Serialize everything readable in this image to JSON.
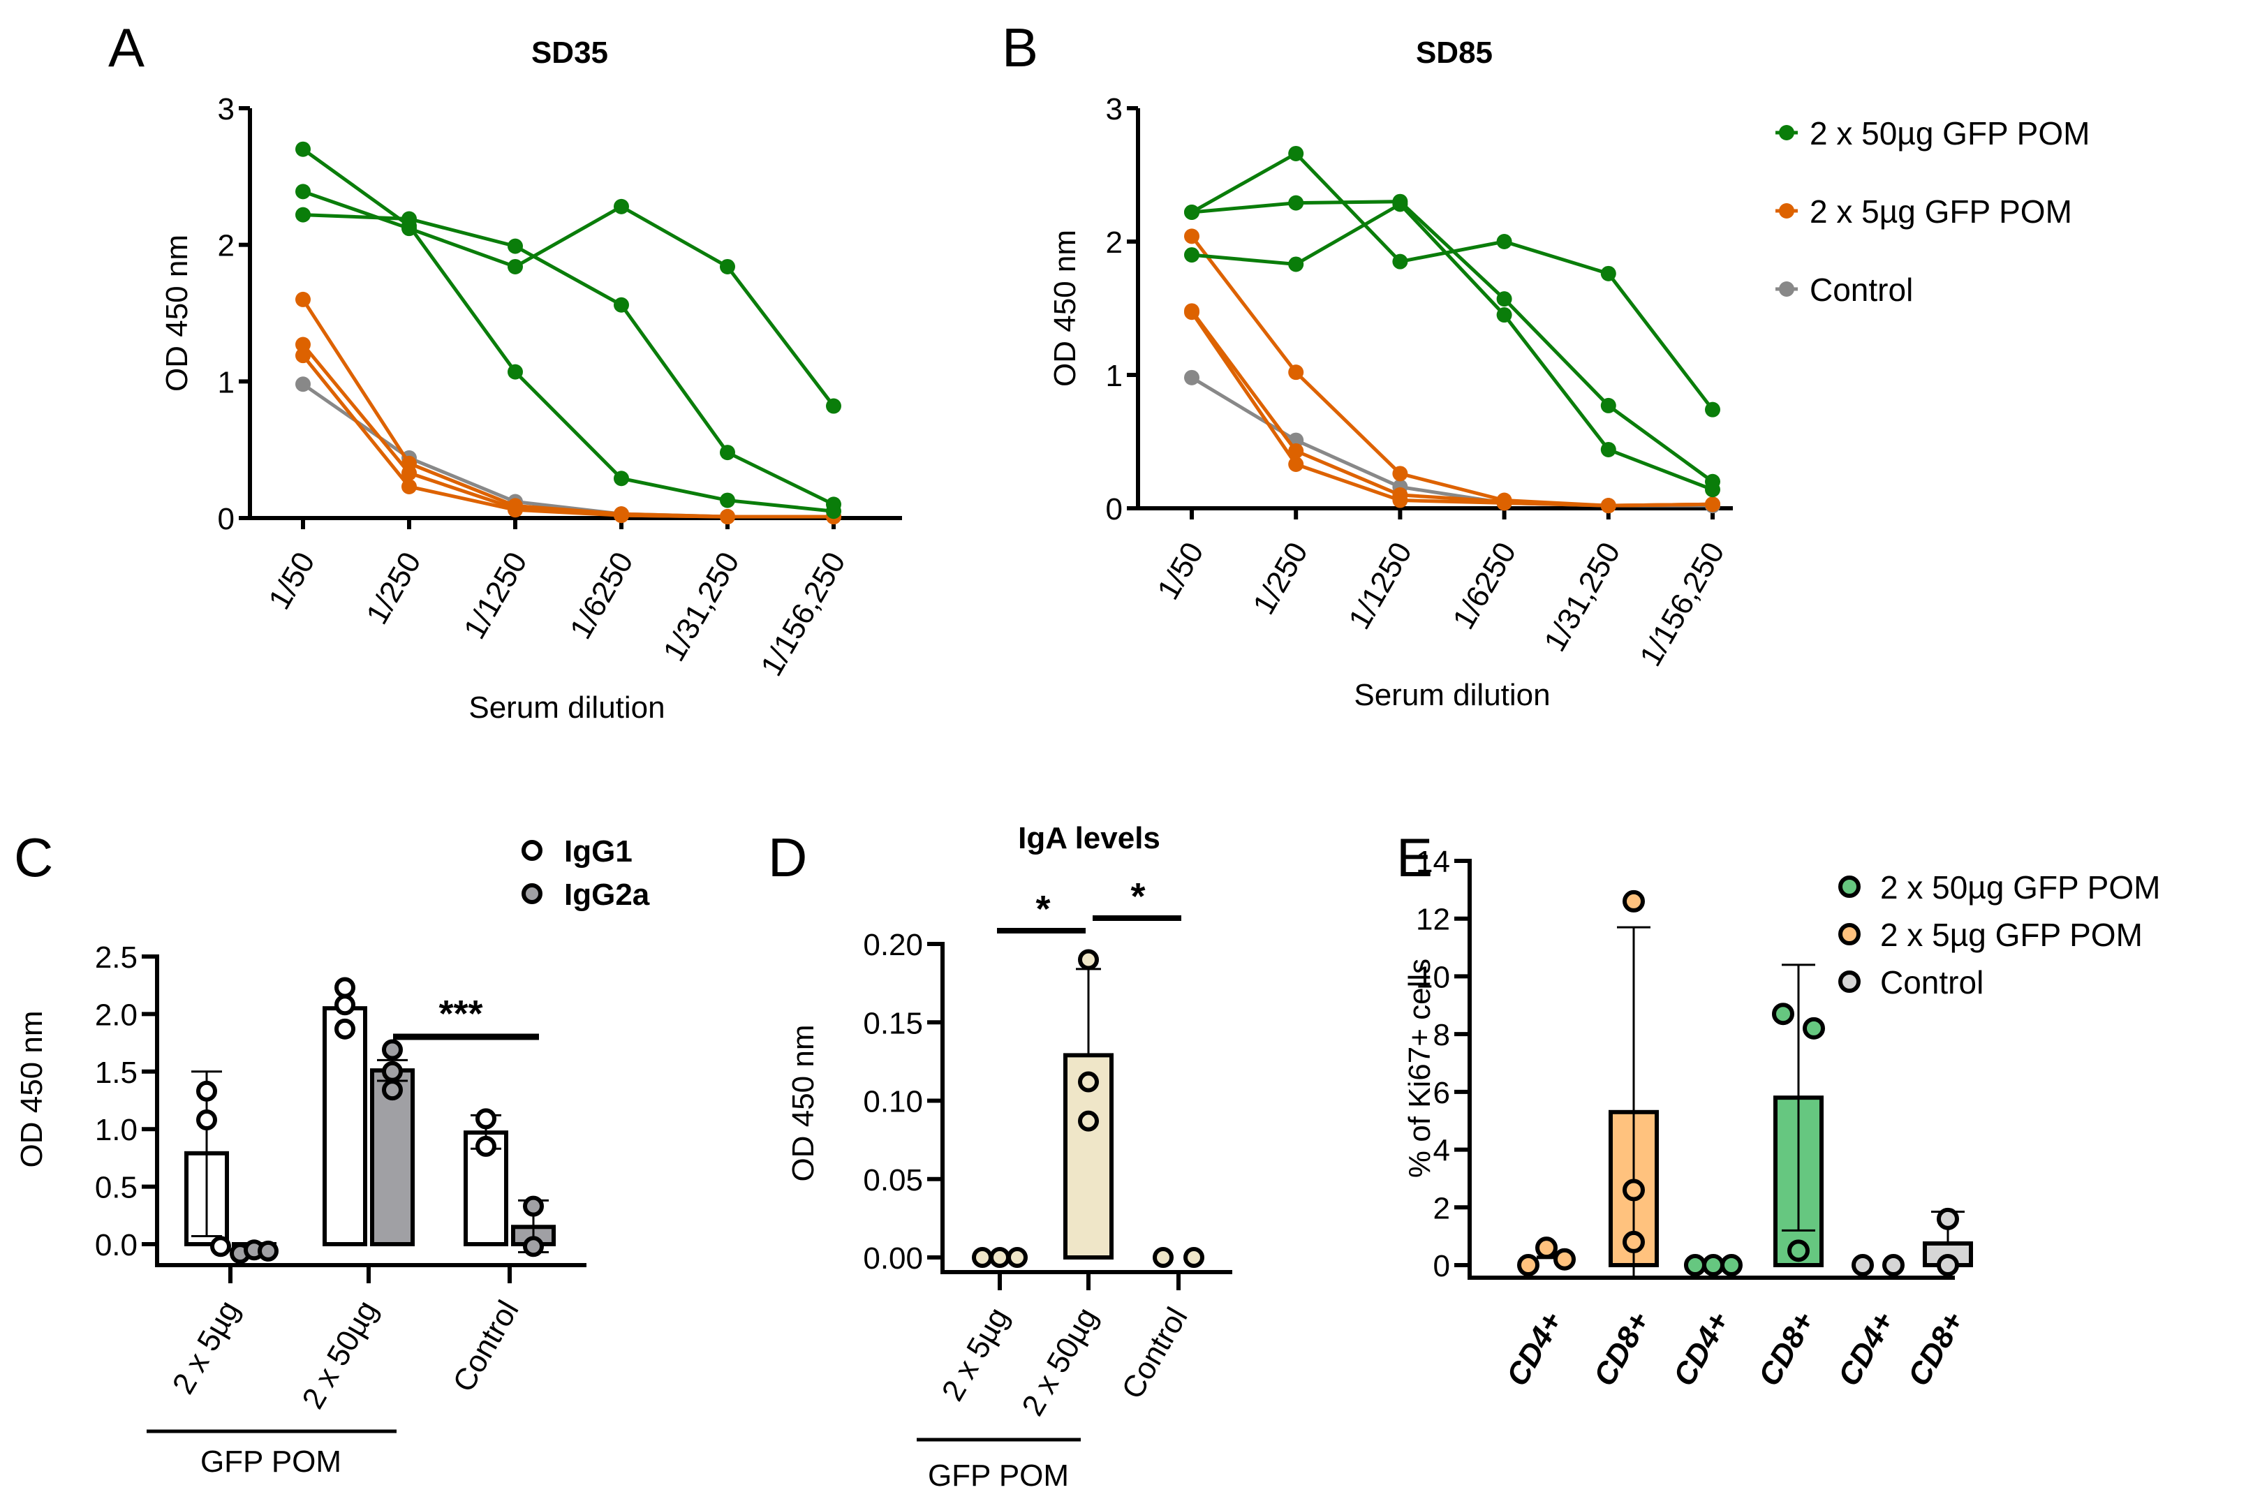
{
  "colors": {
    "green_line": "#0a7d0a",
    "orange_line": "#dd6200",
    "gray_line": "#888888",
    "igg1_fill": "#ffffff",
    "igg2a_fill": "#a0a0a4",
    "iga_fill": "#efe6c8",
    "e_green": "#66c780",
    "e_orange": "#ffc27e",
    "e_gray": "#d6d6d6"
  },
  "chart_data": [
    {
      "panel": "A",
      "type": "line",
      "title": "SD35",
      "xlabel": "Serum dilution",
      "ylabel": "OD 450 nm",
      "ylim": [
        0,
        3
      ],
      "yticks": [
        "0",
        "1",
        "2",
        "3"
      ],
      "categories": [
        "1/50",
        "1/250",
        "1/1250",
        "1/6250",
        "1/31,250",
        "1/156,250"
      ],
      "series": [
        {
          "name": "2 x 50µg GFP POM",
          "color_key": "green_line",
          "values": [
            2.7,
            2.14,
            1.07,
            0.29,
            0.13,
            0.05
          ]
        },
        {
          "name": "2 x 50µg GFP POM",
          "color_key": "green_line",
          "values": [
            2.39,
            2.12,
            1.84,
            2.28,
            1.84,
            0.82
          ]
        },
        {
          "name": "2 x 50µg GFP POM",
          "color_key": "green_line",
          "values": [
            2.22,
            2.19,
            1.99,
            1.56,
            0.48,
            0.1
          ]
        },
        {
          "name": "2 x 5µg GFP POM",
          "color_key": "orange_line",
          "values": [
            1.6,
            0.4,
            0.09,
            0.03,
            0.01,
            0.01
          ]
        },
        {
          "name": "2 x 5µg GFP POM",
          "color_key": "orange_line",
          "values": [
            1.27,
            0.33,
            0.07,
            0.02,
            0.01,
            0.01
          ]
        },
        {
          "name": "2 x 5µg GFP POM",
          "color_key": "orange_line",
          "values": [
            1.19,
            0.23,
            0.06,
            0.02,
            0.01,
            0.01
          ]
        },
        {
          "name": "Control",
          "color_key": "gray_line",
          "values": [
            0.98,
            0.44,
            0.12,
            0.03,
            0.01,
            0.01
          ]
        }
      ]
    },
    {
      "panel": "B",
      "type": "line",
      "title": "SD85",
      "xlabel": "Serum dilution",
      "ylabel": "OD 450 nm",
      "ylim": [
        0,
        3
      ],
      "yticks": [
        "0",
        "1",
        "2",
        "3"
      ],
      "categories": [
        "1/50",
        "1/250",
        "1/1250",
        "1/6250",
        "1/31,250",
        "1/156,250"
      ],
      "legend": {
        "position": "right",
        "entries": [
          {
            "label": "2 x 50µg GFP POM",
            "color_key": "green_line"
          },
          {
            "label": "2 x 5µg GFP POM",
            "color_key": "orange_line"
          },
          {
            "label": "Control",
            "color_key": "gray_line"
          }
        ]
      },
      "series": [
        {
          "name": "2 x 50µg GFP POM",
          "color_key": "green_line",
          "values": [
            2.22,
            2.66,
            1.85,
            2.0,
            1.76,
            0.74
          ]
        },
        {
          "name": "2 x 50µg GFP POM",
          "color_key": "green_line",
          "values": [
            2.22,
            2.29,
            2.3,
            1.57,
            0.77,
            0.2
          ]
        },
        {
          "name": "2 x 50µg GFP POM",
          "color_key": "green_line",
          "values": [
            1.9,
            1.83,
            2.28,
            1.45,
            0.44,
            0.14
          ]
        },
        {
          "name": "2 x 5µg GFP POM",
          "color_key": "orange_line",
          "values": [
            2.04,
            1.02,
            0.26,
            0.06,
            0.02,
            0.03
          ]
        },
        {
          "name": "2 x 5µg GFP POM",
          "color_key": "orange_line",
          "values": [
            1.48,
            0.43,
            0.1,
            0.05,
            0.02,
            0.03
          ]
        },
        {
          "name": "2 x 5µg GFP POM",
          "color_key": "orange_line",
          "values": [
            1.47,
            0.33,
            0.06,
            0.04,
            0.02,
            0.03
          ]
        },
        {
          "name": "Control",
          "color_key": "gray_line",
          "values": [
            0.98,
            0.51,
            0.16,
            0.04,
            0.02,
            0.02
          ]
        }
      ]
    },
    {
      "panel": "C",
      "type": "bar",
      "title": "",
      "ylabel": "OD 450 nm",
      "ylim": [
        -0.1,
        2.5
      ],
      "yticks": [
        "0.0",
        "0.5",
        "1.0",
        "1.5",
        "2.0",
        "2.5"
      ],
      "categories": [
        "2 x 5µg",
        "2 x 50µg",
        "Control"
      ],
      "group_bracket": {
        "label": "GFP POM",
        "spans": [
          "2 x 5µg",
          "2 x 50µg"
        ]
      },
      "legend": {
        "position": "top-right",
        "entries": [
          {
            "label": "IgG1",
            "color_key": "igg1_fill"
          },
          {
            "label": "IgG2a",
            "color_key": "igg2a_fill"
          }
        ]
      },
      "series": [
        {
          "name": "IgG1",
          "color_key": "igg1_fill",
          "values": [
            0.79,
            2.05,
            0.97
          ],
          "error_high": [
            1.5,
            2.05,
            1.12
          ],
          "error_low": [
            0.07,
            2.05,
            0.83
          ],
          "points": [
            [
              1.33,
              1.08,
              -0.02
            ],
            [
              2.23,
              2.08,
              1.87
            ],
            [
              1.09,
              0.85
            ]
          ]
        },
        {
          "name": "IgG2a",
          "color_key": "igg2a_fill",
          "values": [
            -0.05,
            1.51,
            0.15
          ],
          "error_high": [
            -0.05,
            1.6,
            0.38
          ],
          "error_low": [
            -0.05,
            1.42,
            -0.07
          ],
          "points": [
            [
              -0.08,
              -0.05,
              -0.06
            ],
            [
              1.69,
              1.5,
              1.34
            ],
            [
              0.33,
              -0.02
            ]
          ]
        }
      ],
      "annotations": [
        {
          "text": "***",
          "between": [
            "2 x 50µg IgG2a",
            "Control IgG2a"
          ]
        }
      ]
    },
    {
      "panel": "D",
      "type": "bar",
      "title": "IgA levels",
      "ylabel": "OD 450 nm",
      "ylim": [
        0,
        0.2
      ],
      "yticks": [
        "0.00",
        "0.05",
        "0.10",
        "0.15",
        "0.20"
      ],
      "categories": [
        "2 x 5µg",
        "2 x 50µg",
        "Control"
      ],
      "group_bracket": {
        "label": "GFP POM",
        "spans": [
          "2 x 5µg",
          "2 x 50µg"
        ]
      },
      "series": [
        {
          "name": "IgA",
          "color_key": "iga_fill",
          "values": [
            0.0,
            0.129,
            0.0
          ],
          "error_high": [
            0.0,
            0.184,
            0.0
          ],
          "points": [
            [
              0.0,
              0.0,
              0.0
            ],
            [
              0.19,
              0.112,
              0.087
            ],
            [
              0.0,
              0.0
            ]
          ]
        }
      ],
      "annotations": [
        {
          "text": "*",
          "between": [
            "2 x 5µg",
            "2 x 50µg"
          ]
        },
        {
          "text": "*",
          "between": [
            "2 x 50µg",
            "Control"
          ]
        }
      ]
    },
    {
      "panel": "E",
      "type": "bar",
      "title": "",
      "ylabel": "% of Ki67+ cells",
      "ylim": [
        0,
        14
      ],
      "yticks": [
        "0",
        "2",
        "4",
        "6",
        "8",
        "10",
        "12",
        "14"
      ],
      "legend": {
        "position": "top-right",
        "entries": [
          {
            "label": "2 x 50µg GFP POM",
            "color_key": "e_green"
          },
          {
            "label": "2 x 5µg GFP POM",
            "color_key": "e_orange"
          },
          {
            "label": "Control",
            "color_key": "e_gray"
          }
        ]
      },
      "bars": [
        {
          "group": "2 x 5µg GFP POM",
          "label": "CD4+",
          "color_key": "e_orange",
          "value": 0.27,
          "error_high": 0.55,
          "points": [
            0.0,
            0.6,
            0.2
          ]
        },
        {
          "group": "2 x 5µg GFP POM",
          "label": "CD8+",
          "color_key": "e_orange",
          "value": 5.3,
          "error_high": 11.7,
          "error_low": -1.1,
          "points": [
            12.6,
            2.6,
            0.8
          ]
        },
        {
          "group": "2 x 50µg GFP POM",
          "label": "CD4+",
          "color_key": "e_green",
          "value": 0.0,
          "points": [
            0.0,
            0.0,
            0.0
          ]
        },
        {
          "group": "2 x 50µg GFP POM",
          "label": "CD8+",
          "color_key": "e_green",
          "value": 5.8,
          "error_high": 10.4,
          "error_low": 1.2,
          "points": [
            8.7,
            8.2,
            0.5
          ]
        },
        {
          "group": "Control",
          "label": "CD4+",
          "color_key": "e_gray",
          "value": 0.0,
          "points": [
            0.0,
            0.0
          ]
        },
        {
          "group": "Control",
          "label": "CD8+",
          "color_key": "e_gray",
          "value": 0.75,
          "error_high": 1.85,
          "points": [
            1.6,
            0.0
          ]
        }
      ]
    }
  ],
  "panels": {
    "A": {
      "letter": "A"
    },
    "B": {
      "letter": "B"
    },
    "C": {
      "letter": "C"
    },
    "D": {
      "letter": "D"
    },
    "E": {
      "letter": "E"
    }
  }
}
